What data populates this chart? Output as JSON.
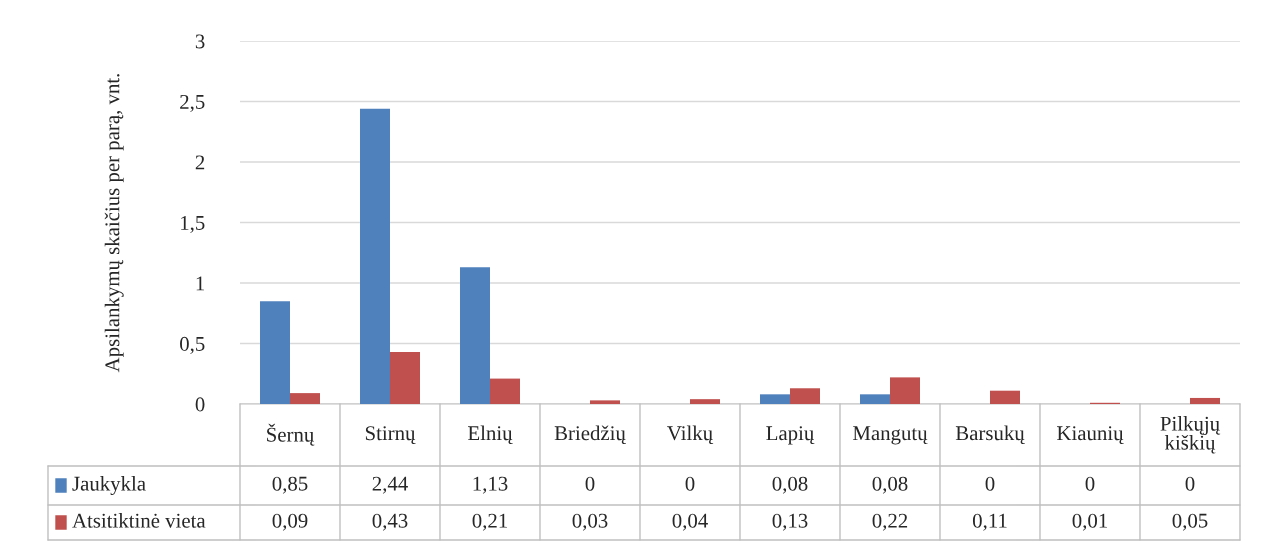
{
  "chart_data": {
    "type": "bar",
    "ylabel": "Apsilankymų skaičius per parą, vnt.",
    "categories": [
      "Šernų",
      "Stirnų",
      "Elnių",
      "Briedžių",
      "Vilkų",
      "Lapių",
      "Mangutų",
      "Barsukų",
      "Kiaunių",
      "Pilkųjų\nkiškių"
    ],
    "series": [
      {
        "name": "Jaukykla",
        "color": "#4f81bd",
        "values": [
          0.85,
          2.44,
          1.13,
          0,
          0,
          0.08,
          0.08,
          0,
          0,
          0
        ],
        "value_labels": [
          "0,85",
          "2,44",
          "1,13",
          "0",
          "0",
          "0,08",
          "0,08",
          "0",
          "0",
          "0"
        ]
      },
      {
        "name": "Atsitiktinė vieta",
        "color": "#c0504d",
        "values": [
          0.09,
          0.43,
          0.21,
          0.03,
          0.04,
          0.13,
          0.22,
          0.11,
          0.01,
          0.05
        ],
        "value_labels": [
          "0,09",
          "0,43",
          "0,21",
          "0,03",
          "0,04",
          "0,13",
          "0,22",
          "0,11",
          "0,01",
          "0,05"
        ]
      }
    ],
    "ylim": [
      0,
      3
    ],
    "yticks": [
      0,
      {
        "value": 0.5,
        "label": "0,5"
      },
      1,
      {
        "value": 1.5,
        "label": "1,5"
      },
      2,
      {
        "value": 2.5,
        "label": "2,5"
      },
      3
    ],
    "grid": "y",
    "legend": "bottom"
  }
}
